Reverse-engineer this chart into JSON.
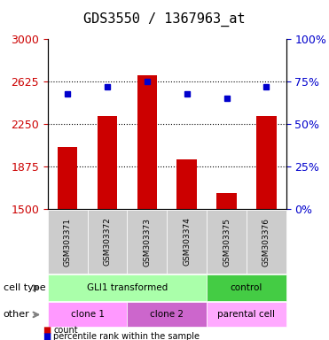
{
  "title": "GDS3550 / 1367963_at",
  "samples": [
    "GSM303371",
    "GSM303372",
    "GSM303373",
    "GSM303374",
    "GSM303375",
    "GSM303376"
  ],
  "bar_values": [
    2050,
    2320,
    2680,
    1940,
    1640,
    2320
  ],
  "percentile_values": [
    68,
    72,
    75,
    68,
    65,
    72
  ],
  "ylim_left": [
    1500,
    3000
  ],
  "ylim_right": [
    0,
    100
  ],
  "yticks_left": [
    1500,
    1875,
    2250,
    2625,
    3000
  ],
  "yticks_right": [
    0,
    25,
    50,
    75,
    100
  ],
  "bar_color": "#cc0000",
  "dot_color": "#0000cc",
  "bar_width": 0.5,
  "cell_type_labels": [
    {
      "label": "GLI1 transformed",
      "span": [
        0,
        4
      ],
      "color": "#aaffaa"
    },
    {
      "label": "control",
      "span": [
        4,
        6
      ],
      "color": "#44cc44"
    }
  ],
  "other_labels": [
    {
      "label": "clone 1",
      "span": [
        0,
        2
      ],
      "color": "#ff99ff"
    },
    {
      "label": "clone 2",
      "span": [
        2,
        4
      ],
      "color": "#cc66cc"
    },
    {
      "label": "parental cell",
      "span": [
        4,
        6
      ],
      "color": "#ffaaff"
    }
  ],
  "xlabel_area_color": "#cccccc",
  "legend_count_color": "#cc0000",
  "legend_pct_color": "#0000cc",
  "row_label_cell_type": "cell type",
  "row_label_other": "other",
  "title_fontsize": 11,
  "tick_fontsize": 9,
  "label_fontsize": 9
}
